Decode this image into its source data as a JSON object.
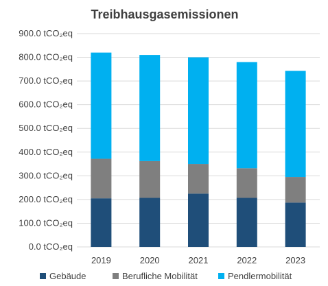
{
  "chart_data": {
    "type": "bar",
    "stacked": true,
    "title": "Treibhausgasemissionen",
    "xlabel": "",
    "ylabel": "",
    "categories": [
      "2019",
      "2020",
      "2021",
      "2022",
      "2023"
    ],
    "series": [
      {
        "name": "Gebäude",
        "color": "#1f4e79",
        "values": [
          205,
          207,
          225,
          207,
          187
        ]
      },
      {
        "name": "Berufliche Mobilität",
        "color": "#7f7f7f",
        "values": [
          167,
          155,
          125,
          125,
          108
        ]
      },
      {
        "name": "Pendlermobilität",
        "color": "#00b0f0",
        "values": [
          448,
          448,
          450,
          448,
          448
        ]
      }
    ],
    "ylim": [
      0,
      900
    ],
    "y_ticks": [
      0,
      100,
      200,
      300,
      400,
      500,
      600,
      700,
      800,
      900
    ],
    "y_tick_labels": [
      "0.0 tCO₂eq",
      "100.0 tCO₂eq",
      "200.0 tCO₂eq",
      "300.0 tCO₂eq",
      "400.0 tCO₂eq",
      "500.0 tCO₂eq",
      "600.0 tCO₂eq",
      "700.0 tCO₂eq",
      "800.0 tCO₂eq",
      "900.0 tCO₂eq"
    ],
    "grid": true,
    "legend_position": "bottom"
  }
}
